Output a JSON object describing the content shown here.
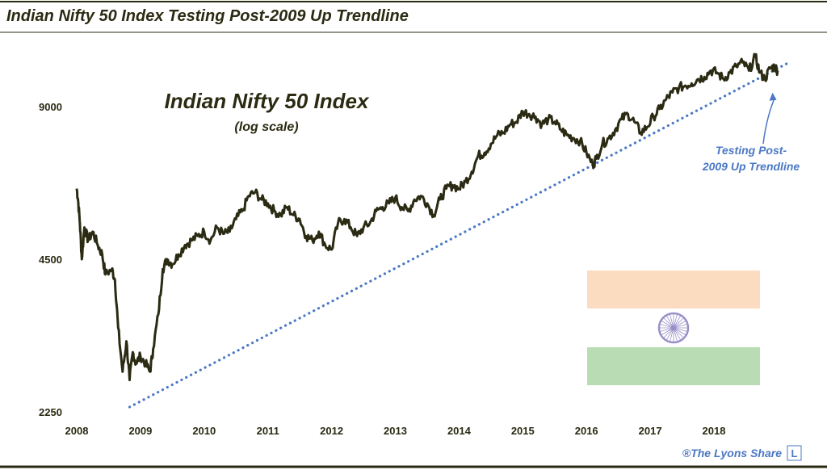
{
  "chart_data": {
    "type": "line",
    "title": "Indian Nifty 50 Index Testing Post-2009 Up Trendline",
    "subtitle": "Indian Nifty 50 Index",
    "scale_note": "(log scale)",
    "y_scale": "log",
    "ylim": [
      2250,
      11000
    ],
    "xlim": [
      2008.0,
      2019.2
    ],
    "y_ticks": [
      {
        "value": 2250,
        "label": "2250"
      },
      {
        "value": 4500,
        "label": "4500"
      },
      {
        "value": 9000,
        "label": "9000"
      }
    ],
    "x_ticks": [
      {
        "value": 2008,
        "label": "2008"
      },
      {
        "value": 2009,
        "label": "2009"
      },
      {
        "value": 2010,
        "label": "2010"
      },
      {
        "value": 2011,
        "label": "2011"
      },
      {
        "value": 2012,
        "label": "2012"
      },
      {
        "value": 2013,
        "label": "2013"
      },
      {
        "value": 2014,
        "label": "2014"
      },
      {
        "value": 2015,
        "label": "2015"
      },
      {
        "value": 2016,
        "label": "2016"
      },
      {
        "value": 2017,
        "label": "2017"
      },
      {
        "value": 2018,
        "label": "2018"
      }
    ],
    "series": [
      {
        "name": "Nifty 50",
        "color": "#2b2a12",
        "x": [
          2008.0,
          2008.02,
          2008.05,
          2008.08,
          2008.12,
          2008.18,
          2008.25,
          2008.33,
          2008.4,
          2008.45,
          2008.55,
          2008.6,
          2008.65,
          2008.72,
          2008.78,
          2008.83,
          2008.88,
          2008.93,
          2009.0,
          2009.08,
          2009.15,
          2009.2,
          2009.28,
          2009.35,
          2009.42,
          2009.5,
          2009.6,
          2009.7,
          2009.8,
          2009.9,
          2010.0,
          2010.1,
          2010.2,
          2010.3,
          2010.4,
          2010.5,
          2010.6,
          2010.7,
          2010.8,
          2010.9,
          2011.0,
          2011.1,
          2011.2,
          2011.3,
          2011.4,
          2011.5,
          2011.6,
          2011.7,
          2011.8,
          2011.9,
          2012.0,
          2012.1,
          2012.2,
          2012.3,
          2012.4,
          2012.5,
          2012.6,
          2012.7,
          2012.8,
          2012.9,
          2013.0,
          2013.1,
          2013.2,
          2013.3,
          2013.4,
          2013.5,
          2013.6,
          2013.7,
          2013.8,
          2013.9,
          2014.0,
          2014.1,
          2014.2,
          2014.3,
          2014.4,
          2014.5,
          2014.6,
          2014.7,
          2014.8,
          2014.9,
          2015.0,
          2015.1,
          2015.2,
          2015.3,
          2015.4,
          2015.5,
          2015.6,
          2015.7,
          2015.8,
          2015.9,
          2016.0,
          2016.1,
          2016.15,
          2016.25,
          2016.35,
          2016.45,
          2016.55,
          2016.65,
          2016.75,
          2016.85,
          2016.95,
          2017.05,
          2017.15,
          2017.25,
          2017.35,
          2017.45,
          2017.55,
          2017.65,
          2017.75,
          2017.85,
          2017.95,
          2018.05,
          2018.15,
          2018.25,
          2018.35,
          2018.45,
          2018.55,
          2018.65,
          2018.72,
          2018.8,
          2018.88,
          2018.95,
          2019.0
        ],
        "values": [
          6200,
          5900,
          5300,
          4500,
          5200,
          4900,
          5100,
          4800,
          4600,
          4200,
          4300,
          4100,
          3300,
          2700,
          3100,
          2600,
          2950,
          2800,
          2900,
          2800,
          2700,
          3000,
          3500,
          4300,
          4500,
          4400,
          4600,
          4800,
          4900,
          5000,
          5100,
          4900,
          5200,
          5050,
          5100,
          5400,
          5600,
          6000,
          6100,
          5900,
          5800,
          5600,
          5500,
          5700,
          5500,
          5400,
          5000,
          4900,
          5100,
          4800,
          4700,
          5300,
          5400,
          5200,
          5000,
          5200,
          5300,
          5600,
          5700,
          5800,
          5950,
          5700,
          5600,
          5900,
          6000,
          5800,
          5500,
          5900,
          6200,
          6300,
          6200,
          6400,
          6700,
          7200,
          7300,
          7600,
          7900,
          8000,
          8300,
          8400,
          8800,
          8700,
          8600,
          8300,
          8500,
          8400,
          8100,
          7900,
          7800,
          7700,
          7300,
          6900,
          7100,
          7600,
          7800,
          8100,
          8500,
          8700,
          8400,
          8000,
          8200,
          8600,
          8900,
          9300,
          9600,
          9800,
          9900,
          10000,
          10200,
          10300,
          10600,
          10500,
          10200,
          10500,
          10800,
          11000,
          10600,
          11300,
          10500,
          10200,
          10700,
          10800,
          10600
        ]
      }
    ],
    "trendline": {
      "name": "Post-2009 Up Trendline",
      "color": "#4a78c4",
      "x": [
        2008.83,
        2019.15
      ],
      "values": [
        2300,
        10950
      ]
    },
    "annotation": {
      "line1": "Testing Post-",
      "line2": "2009 Up Trendline",
      "color": "#4a78c4",
      "points_to_x": 2018.92,
      "points_to_value": 9800
    },
    "flag": {
      "description": "India flag",
      "saffron": "#fcdcc0",
      "white": "#ffffff",
      "green": "#b9dcb4",
      "chakra": "#9a90c8"
    },
    "credit": {
      "text": "®The Lyons Share",
      "logo_letter": "L",
      "color": "#4a78c4"
    },
    "colors": {
      "title_text": "#2b2a12",
      "rule": "#2b2a12",
      "axis_label": "#2b2a12"
    }
  }
}
